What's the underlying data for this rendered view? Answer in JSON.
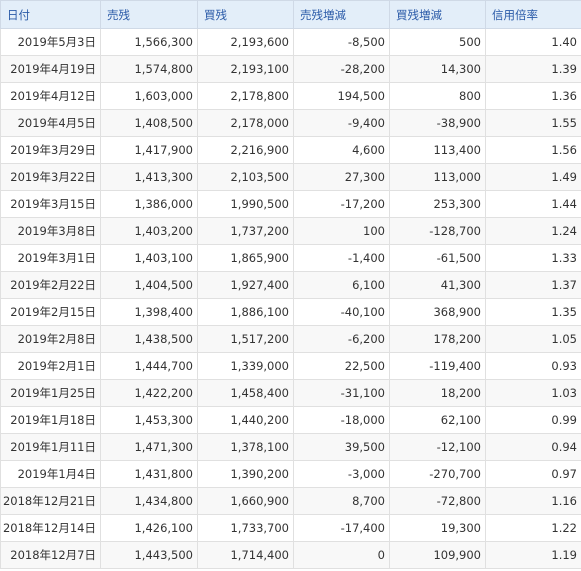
{
  "table": {
    "headers": [
      "日付",
      "売残",
      "買残",
      "売残増減",
      "買残増減",
      "信用倍率"
    ],
    "rows": [
      [
        "2019年5月3日",
        "1,566,300",
        "2,193,600",
        "-8,500",
        "500",
        "1.40"
      ],
      [
        "2019年4月19日",
        "1,574,800",
        "2,193,100",
        "-28,200",
        "14,300",
        "1.39"
      ],
      [
        "2019年4月12日",
        "1,603,000",
        "2,178,800",
        "194,500",
        "800",
        "1.36"
      ],
      [
        "2019年4月5日",
        "1,408,500",
        "2,178,000",
        "-9,400",
        "-38,900",
        "1.55"
      ],
      [
        "2019年3月29日",
        "1,417,900",
        "2,216,900",
        "4,600",
        "113,400",
        "1.56"
      ],
      [
        "2019年3月22日",
        "1,413,300",
        "2,103,500",
        "27,300",
        "113,000",
        "1.49"
      ],
      [
        "2019年3月15日",
        "1,386,000",
        "1,990,500",
        "-17,200",
        "253,300",
        "1.44"
      ],
      [
        "2019年3月8日",
        "1,403,200",
        "1,737,200",
        "100",
        "-128,700",
        "1.24"
      ],
      [
        "2019年3月1日",
        "1,403,100",
        "1,865,900",
        "-1,400",
        "-61,500",
        "1.33"
      ],
      [
        "2019年2月22日",
        "1,404,500",
        "1,927,400",
        "6,100",
        "41,300",
        "1.37"
      ],
      [
        "2019年2月15日",
        "1,398,400",
        "1,886,100",
        "-40,100",
        "368,900",
        "1.35"
      ],
      [
        "2019年2月8日",
        "1,438,500",
        "1,517,200",
        "-6,200",
        "178,200",
        "1.05"
      ],
      [
        "2019年2月1日",
        "1,444,700",
        "1,339,000",
        "22,500",
        "-119,400",
        "0.93"
      ],
      [
        "2019年1月25日",
        "1,422,200",
        "1,458,400",
        "-31,100",
        "18,200",
        "1.03"
      ],
      [
        "2019年1月18日",
        "1,453,300",
        "1,440,200",
        "-18,000",
        "62,100",
        "0.99"
      ],
      [
        "2019年1月11日",
        "1,471,300",
        "1,378,100",
        "39,500",
        "-12,100",
        "0.94"
      ],
      [
        "2019年1月4日",
        "1,431,800",
        "1,390,200",
        "-3,000",
        "-270,700",
        "0.97"
      ],
      [
        "2018年12月21日",
        "1,434,800",
        "1,660,900",
        "8,700",
        "-72,800",
        "1.16"
      ],
      [
        "2018年12月14日",
        "1,426,100",
        "1,733,700",
        "-17,400",
        "19,300",
        "1.22"
      ],
      [
        "2018年12月7日",
        "1,443,500",
        "1,714,400",
        "0",
        "109,900",
        "1.19"
      ]
    ]
  }
}
